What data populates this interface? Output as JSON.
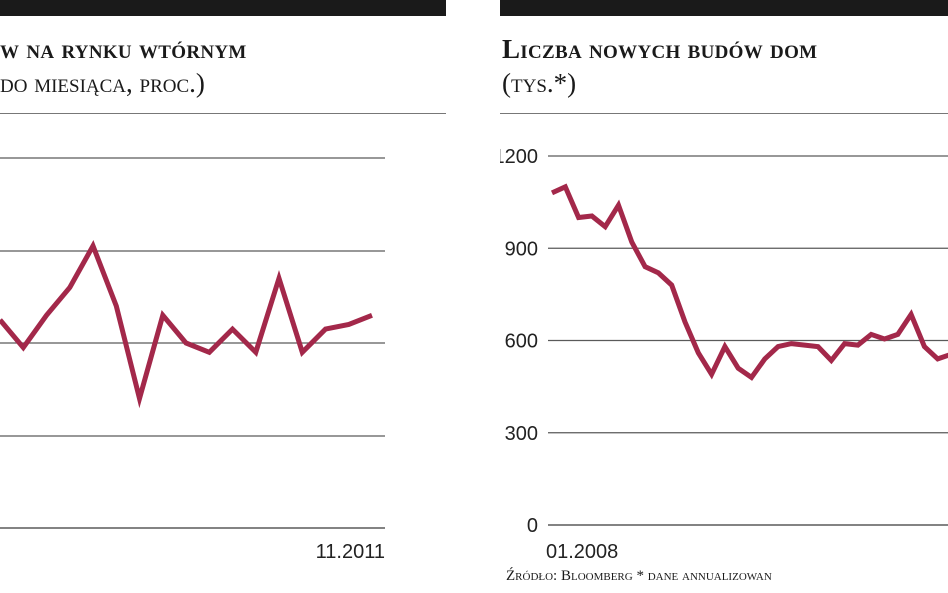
{
  "colors": {
    "line": "#a3284a",
    "grid": "#5a5a5a",
    "bar": "#1a1a1a"
  },
  "left_panel": {
    "title": "w na rynku wtórnym",
    "subtitle": "do miesiąca, proc.)",
    "x_end_label": "11.2011"
  },
  "right_panel": {
    "title": "Liczba nowych budów dom",
    "subtitle": "(tys.*)",
    "x_start_label": "01.2008",
    "source_text": "Źródło: Bloomberg  * dane annualizowan"
  },
  "chart_data": [
    {
      "type": "line",
      "title": "w na rynku wtórnym",
      "subtitle": "do miesiąca, proc.)",
      "x_tick_labels": [
        "11.2011"
      ],
      "grid": true,
      "series": [
        {
          "values": [
            0.5,
            -0.1,
            0.6,
            1.2,
            2.1,
            0.8,
            -1.2,
            0.6,
            0.0,
            -0.2,
            0.3,
            -0.2,
            1.4,
            -0.2,
            0.3,
            0.4,
            0.6
          ]
        }
      ]
    },
    {
      "type": "line",
      "title": "Liczba nowych budów dom",
      "subtitle": "(tys.*)",
      "ylim": [
        0,
        1200
      ],
      "y_ticks": [
        0,
        300,
        600,
        900,
        1200
      ],
      "x_tick_labels": [
        "01.2008"
      ],
      "grid": true,
      "series": [
        {
          "values": [
            1080,
            1100,
            1000,
            1005,
            970,
            1040,
            920,
            840,
            820,
            780,
            660,
            560,
            490,
            580,
            510,
            480,
            540,
            580,
            590,
            585,
            580,
            535,
            590,
            585,
            620,
            605,
            620,
            685,
            580,
            540,
            555
          ]
        }
      ]
    }
  ]
}
